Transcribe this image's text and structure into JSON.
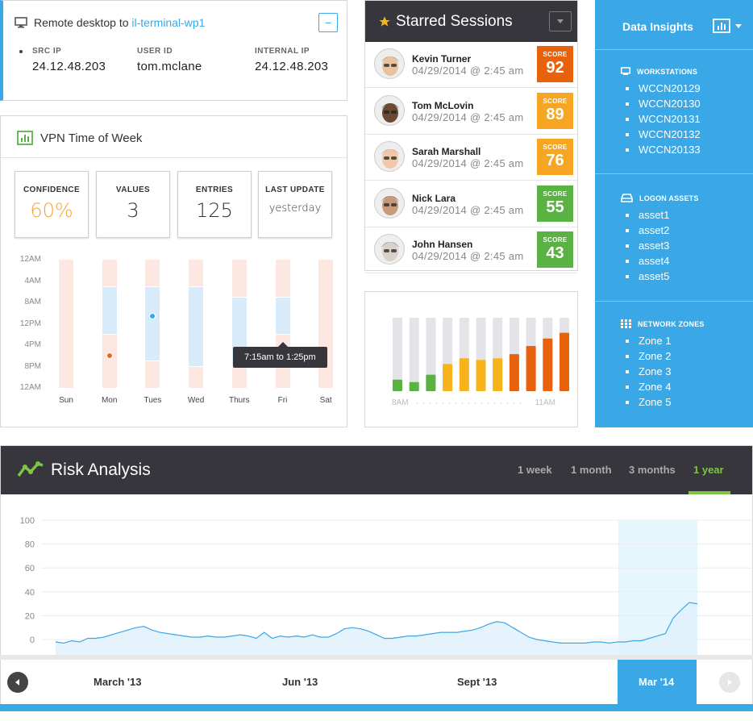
{
  "remote": {
    "prefix": "Remote desktop to",
    "host": "il-terminal-wp1",
    "collapse_label": "−",
    "fields": [
      {
        "label": "SRC IP",
        "value": "24.12.48.203"
      },
      {
        "label": "USER ID",
        "value": "tom.mclane"
      },
      {
        "label": "INTERNAL IP",
        "value": "24.12.48.203"
      }
    ]
  },
  "vpn": {
    "title": "VPN Time of Week",
    "stats": [
      {
        "label": "CONFIDENCE",
        "value": "60%"
      },
      {
        "label": "VALUES",
        "value": "3"
      },
      {
        "label": "ENTRIES",
        "value": "125"
      },
      {
        "label": "LAST UPDATE",
        "value": "yesterday"
      }
    ],
    "tooltip": "7:15am to 1:25pm",
    "chart_data": {
      "type": "bar",
      "categories": [
        "Sun",
        "Mon",
        "Tues",
        "Wed",
        "Thurs",
        "Fri",
        "Sat"
      ],
      "yticks": [
        "12AM",
        "4AM",
        "8AM",
        "12PM",
        "4PM",
        "8PM",
        "12AM"
      ],
      "series": [
        {
          "values": [
            null,
            [
              5,
              14
            ],
            [
              5,
              19
            ],
            [
              5,
              20
            ],
            [
              7,
              20
            ],
            [
              7,
              14
            ],
            null
          ]
        }
      ],
      "points": [
        {
          "day": "Mon",
          "hour": 18
        },
        {
          "day": "Tues",
          "hour": 10.5
        }
      ],
      "colors": {
        "background": "#fde7e1",
        "range": "#d7ebfa",
        "mon_dot": "#e8672a",
        "tue_dot": "#3aa8e6"
      }
    }
  },
  "starred": {
    "title": "Starred Sessions",
    "score_label": "SCORE",
    "sessions": [
      {
        "name": "Kevin Turner",
        "time": "04/29/2014 @ 2:45 am",
        "score": "92",
        "color": "#e8620e"
      },
      {
        "name": "Tom McLovin",
        "time": "04/29/2014 @ 2:45 am",
        "score": "89",
        "color": "#f6a623"
      },
      {
        "name": "Sarah Marshall",
        "time": "04/29/2014 @ 2:45 am",
        "score": "76",
        "color": "#f6a623"
      },
      {
        "name": "Nick Lara",
        "time": "04/29/2014 @ 2:45 am",
        "score": "55",
        "color": "#5ab243"
      },
      {
        "name": "John Hansen",
        "time": "04/29/2014 @ 2:45 am",
        "score": "43",
        "color": "#5ab243"
      }
    ]
  },
  "activity_chart": {
    "chart_data": {
      "type": "bar",
      "x_start": "8AM",
      "x_end": "11AM",
      "values": [
        0.14,
        0.11,
        0.2,
        0.33,
        0.4,
        0.38,
        0.4,
        0.45,
        0.55,
        0.64,
        0.71
      ],
      "colors": [
        "#5ab243",
        "#5ab243",
        "#5ab243",
        "#f6b31b",
        "#f6b31b",
        "#f6b31b",
        "#f6b31b",
        "#e8620e",
        "#e8620e",
        "#e8620e",
        "#e8620e"
      ]
    }
  },
  "insights": {
    "title": "Data Insights",
    "sections": [
      {
        "title": "WORKSTATIONS",
        "items": [
          "WCCN20129",
          "WCCN20130",
          "WCCN20131",
          "WCCN20132",
          "WCCN20133"
        ]
      },
      {
        "title": "LOGON ASSETS",
        "items": [
          "asset1",
          "asset2",
          "asset3",
          "asset4",
          "asset5"
        ]
      },
      {
        "title": "NETWORK ZONES",
        "items": [
          "Zone 1",
          "Zone 2",
          "Zone 3",
          "Zone 4",
          "Zone 5"
        ]
      }
    ]
  },
  "risk": {
    "title": "Risk Analysis",
    "tabs": [
      "1 week",
      "1 month",
      "3 months",
      "1 year"
    ],
    "active_tab": "1 year",
    "timeline": [
      "March '13",
      "Jun '13",
      "Sept '13",
      "Mar '14"
    ],
    "chart_data": {
      "type": "area",
      "yticks": [
        "100",
        "80",
        "60",
        "40",
        "20",
        "0"
      ],
      "ylim": [
        0,
        100
      ],
      "values": [
        -2,
        -3,
        -1,
        -2,
        1,
        1,
        2,
        4,
        6,
        8,
        10,
        11,
        8,
        6,
        5,
        4,
        3,
        2,
        2,
        3,
        2,
        2,
        3,
        4,
        3,
        1,
        6,
        1,
        3,
        2,
        3,
        2,
        4,
        2,
        2,
        5,
        9,
        10,
        9,
        7,
        4,
        1,
        1,
        2,
        3,
        3,
        4,
        5,
        6,
        6,
        6,
        7,
        8,
        10,
        13,
        15,
        14,
        10,
        6,
        2,
        0,
        -1,
        -2,
        -3,
        -3,
        -3,
        -3,
        -2,
        -2,
        -3,
        -2,
        -2,
        -1,
        -1,
        1,
        3,
        5,
        18,
        25,
        31,
        30
      ],
      "highlight_from_index": 74
    }
  }
}
